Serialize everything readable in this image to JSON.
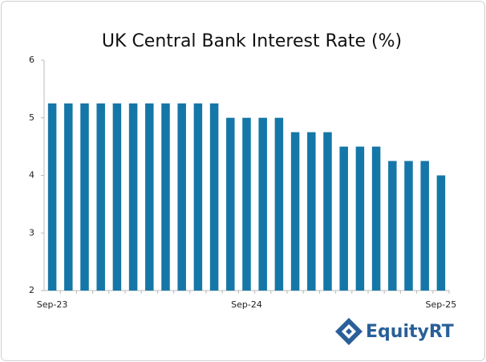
{
  "chart_data": {
    "type": "bar",
    "title": "UK Central Bank Interest Rate (%)",
    "categories": [
      "Sep-23",
      null,
      null,
      null,
      null,
      null,
      null,
      null,
      null,
      null,
      null,
      null,
      "Sep-24",
      null,
      null,
      null,
      null,
      null,
      null,
      null,
      null,
      null,
      null,
      null,
      "Sep-25"
    ],
    "values": [
      5.25,
      5.25,
      5.25,
      5.25,
      5.25,
      5.25,
      5.25,
      5.25,
      5.25,
      5.25,
      5.25,
      5.0,
      5.0,
      5.0,
      5.0,
      4.75,
      4.75,
      4.75,
      4.5,
      4.5,
      4.5,
      4.25,
      4.25,
      4.25,
      4.0
    ],
    "color": "#1577a8",
    "ylim": [
      2,
      6
    ],
    "yticks": [
      2,
      3,
      4,
      5,
      6
    ],
    "grid": false
  },
  "logo": "EquityRT"
}
